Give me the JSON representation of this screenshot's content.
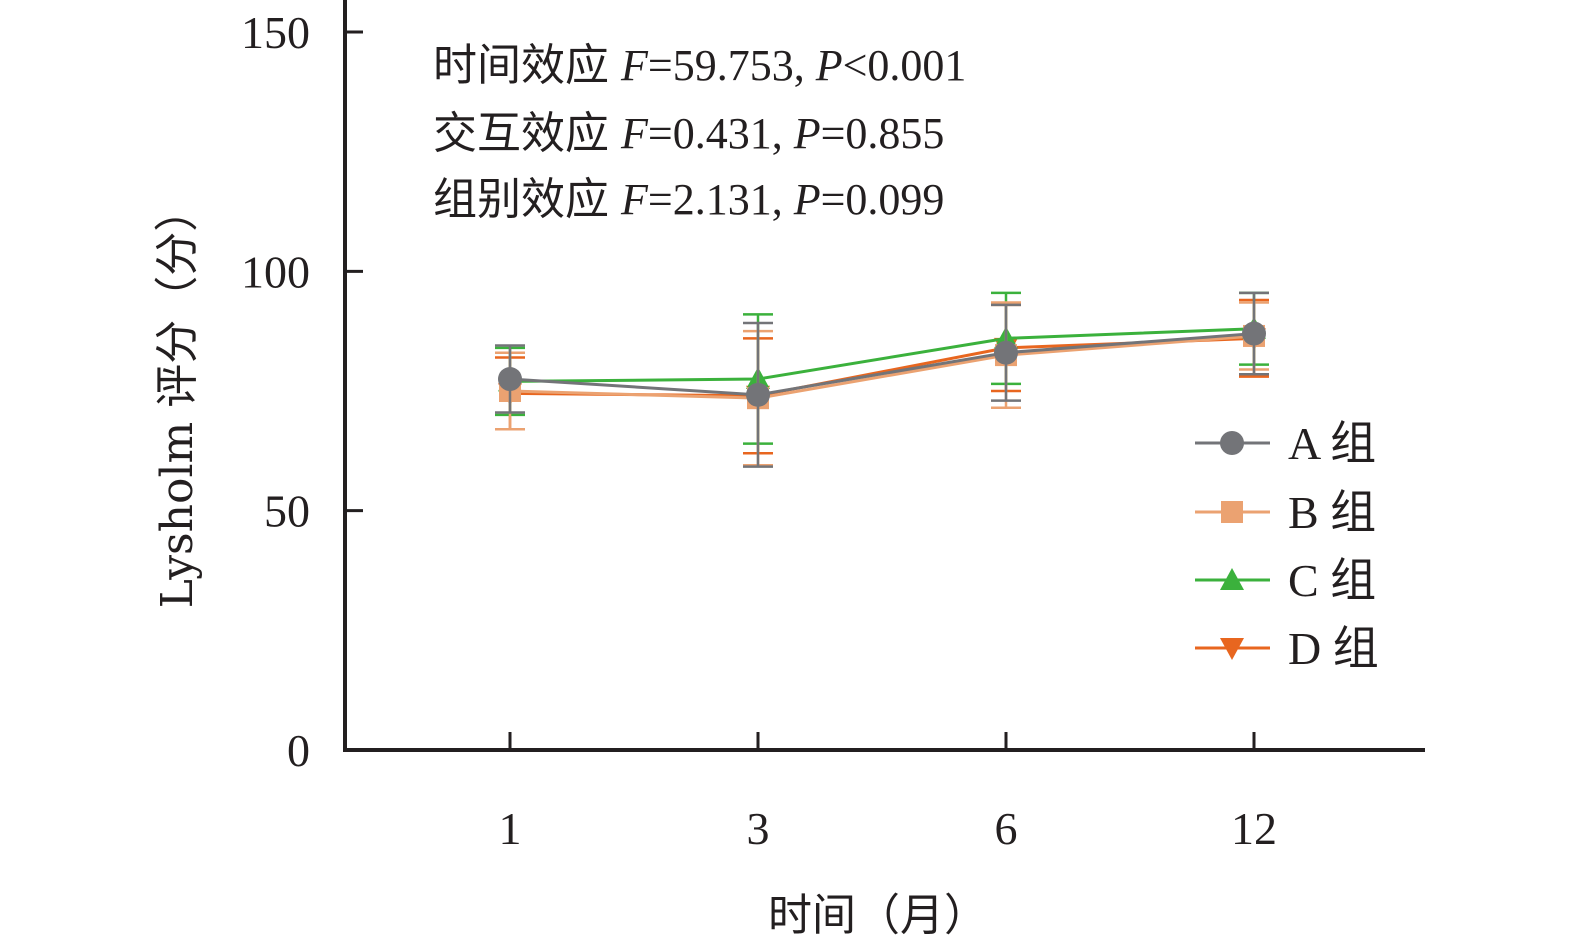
{
  "chart_data": {
    "type": "line",
    "title": "",
    "xlabel": "时间（月）",
    "ylabel": "Lysholm 评分（分）",
    "categories": [
      "1",
      "3",
      "6",
      "12"
    ],
    "ylim": [
      0,
      150
    ],
    "yticks": [
      "0",
      "50",
      "100",
      "150"
    ],
    "grid": false,
    "legend_position": "right",
    "series": [
      {
        "name": "A 组",
        "color": "#737478",
        "marker": "circle",
        "values": [
          77.5,
          74.2,
          83.0,
          87.0
        ],
        "errors": [
          7.0,
          15.0,
          10.0,
          8.5
        ]
      },
      {
        "name": "B 组",
        "color": "#eba271",
        "marker": "square",
        "values": [
          75.0,
          73.5,
          82.5,
          86.5
        ],
        "errors": [
          8.0,
          14.0,
          11.0,
          7.0
        ]
      },
      {
        "name": "C 组",
        "color": "#3bb13c",
        "marker": "triangle-up",
        "values": [
          77.0,
          77.5,
          86.0,
          88.0
        ],
        "errors": [
          7.0,
          13.5,
          9.5,
          7.5
        ]
      },
      {
        "name": "D 组",
        "color": "#e8661f",
        "marker": "triangle-down",
        "values": [
          74.5,
          74.0,
          84.0,
          86.0
        ],
        "errors": [
          7.5,
          12.0,
          9.0,
          8.0
        ]
      }
    ],
    "annotations": [
      {
        "label": "时间效应",
        "f_sym": "F",
        "f_val": "=59.753, ",
        "p_sym": "P",
        "p_val": "<0.001"
      },
      {
        "label": "交互效应",
        "f_sym": "F",
        "f_val": "=0.431, ",
        "p_sym": "P",
        "p_val": "=0.855"
      },
      {
        "label": "组别效应",
        "f_sym": "F",
        "f_val": "=2.131, ",
        "p_sym": "P",
        "p_val": "=0.099"
      }
    ]
  }
}
